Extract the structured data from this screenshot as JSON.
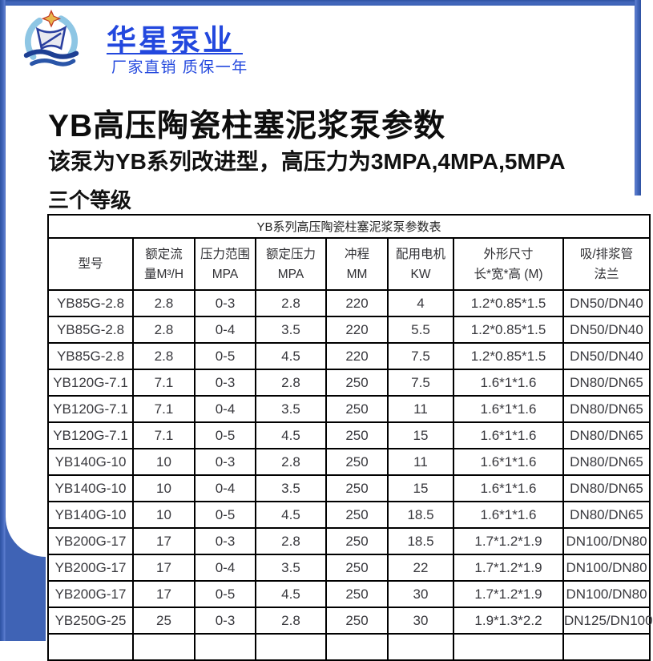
{
  "header": {
    "brand_name": "华星泵业",
    "tagline": "厂家直销 质保一年",
    "logo_icon": "pump-brand-emblem-icon"
  },
  "intro": {
    "title": "YB高压陶瓷柱塞泥浆泵参数",
    "subtitle": "该泵为YB系列改进型，高压力为3MPA,4MPA,5MPA",
    "subtitle2": "三个等级"
  },
  "colors": {
    "frame_blue": "#3a61b5",
    "brand_blue": "#2348de",
    "table_border": "#000000"
  },
  "table": {
    "caption": "YB系列高压陶瓷柱塞泥浆泵参数表",
    "columns": [
      {
        "line1": "型号",
        "line2": ""
      },
      {
        "line1": "额定流",
        "line2": "量M³/H"
      },
      {
        "line1": "压力范围",
        "line2": "MPA"
      },
      {
        "line1": "额定压力",
        "line2": "MPA"
      },
      {
        "line1": "冲程",
        "line2": "MM"
      },
      {
        "line1": "配用电机",
        "line2": "KW"
      },
      {
        "line1": "外形尺寸",
        "line2": "长*宽*高 (M)"
      },
      {
        "line1": "吸/排浆管",
        "line2": "法兰"
      }
    ],
    "rows": [
      [
        "YB85G-2.8",
        "2.8",
        "0-3",
        "2.8",
        "220",
        "4",
        "1.2*0.85*1.5",
        "DN50/DN40"
      ],
      [
        "YB85G-2.8",
        "2.8",
        "0-4",
        "3.5",
        "220",
        "5.5",
        "1.2*0.85*1.5",
        "DN50/DN40"
      ],
      [
        "YB85G-2.8",
        "2.8",
        "0-5",
        "4.5",
        "220",
        "7.5",
        "1.2*0.85*1.5",
        "DN50/DN40"
      ],
      [
        "YB120G-7.1",
        "7.1",
        "0-3",
        "2.8",
        "250",
        "7.5",
        "1.6*1*1.6",
        "DN80/DN65"
      ],
      [
        "YB120G-7.1",
        "7.1",
        "0-4",
        "3.5",
        "250",
        "11",
        "1.6*1*1.6",
        "DN80/DN65"
      ],
      [
        "YB120G-7.1",
        "7.1",
        "0-5",
        "4.5",
        "250",
        "15",
        "1.6*1*1.6",
        "DN80/DN65"
      ],
      [
        "YB140G-10",
        "10",
        "0-3",
        "2.8",
        "250",
        "11",
        "1.6*1*1.6",
        "DN80/DN65"
      ],
      [
        "YB140G-10",
        "10",
        "0-4",
        "3.5",
        "250",
        "15",
        "1.6*1*1.6",
        "DN80/DN65"
      ],
      [
        "YB140G-10",
        "10",
        "0-5",
        "4.5",
        "250",
        "18.5",
        "1.6*1*1.6",
        "DN80/DN65"
      ],
      [
        "YB200G-17",
        "17",
        "0-3",
        "2.8",
        "250",
        "18.5",
        "1.7*1.2*1.9",
        "DN100/DN80"
      ],
      [
        "YB200G-17",
        "17",
        "0-4",
        "3.5",
        "250",
        "22",
        "1.7*1.2*1.9",
        "DN100/DN80"
      ],
      [
        "YB200G-17",
        "17",
        "0-5",
        "4.5",
        "250",
        "30",
        "1.7*1.2*1.9",
        "DN100/DN80"
      ],
      [
        "YB250G-25",
        "25",
        "0-3",
        "2.8",
        "250",
        "30",
        "1.9*1.3*2.2",
        "DN125/DN100"
      ]
    ]
  }
}
